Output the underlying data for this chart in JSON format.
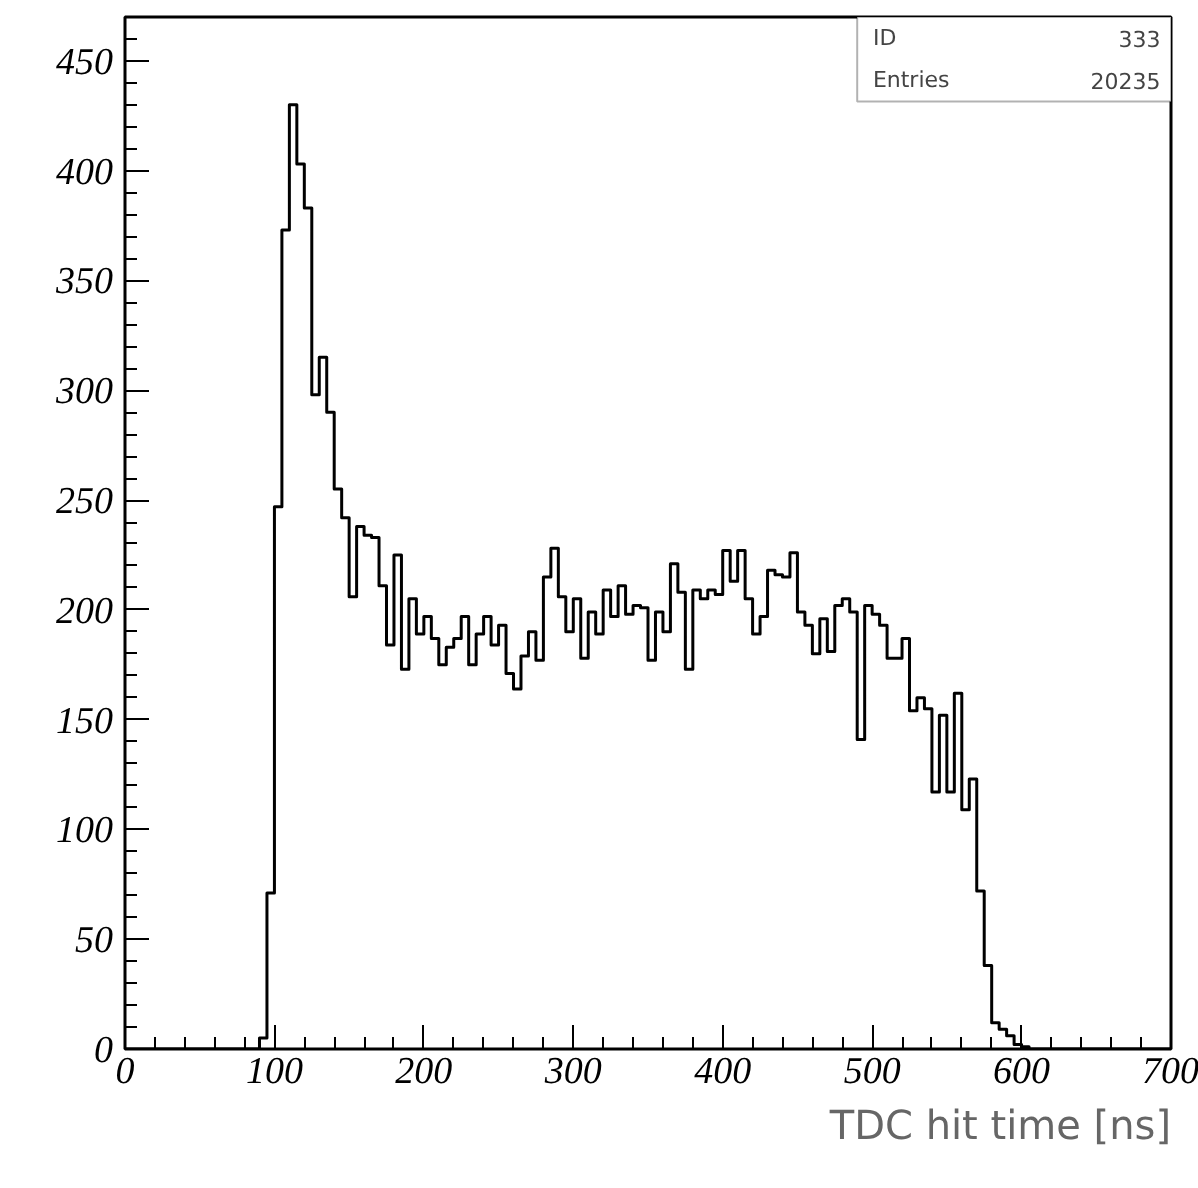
{
  "chart_data": {
    "type": "histogram",
    "xlabel": "TDC hit time [ns]",
    "bins": [
      0,
      5,
      10,
      15,
      20,
      25,
      30,
      35,
      40,
      45,
      50,
      55,
      60,
      65,
      70,
      75,
      80,
      85,
      90,
      95,
      100,
      105,
      110,
      115,
      120,
      125,
      130,
      135,
      140,
      145,
      150,
      155,
      160,
      165,
      170,
      175,
      180,
      185,
      190,
      195,
      200,
      205,
      210,
      215,
      220,
      225,
      230,
      235,
      240,
      245,
      250,
      255,
      260,
      265,
      270,
      275,
      280,
      285,
      290,
      295,
      300,
      305,
      310,
      315,
      320,
      325,
      330,
      335,
      340,
      345,
      350,
      355,
      360,
      365,
      370,
      375,
      380,
      385,
      390,
      395,
      400,
      405,
      410,
      415,
      420,
      425,
      430,
      435,
      440,
      445,
      450,
      455,
      460,
      465,
      470,
      475,
      480,
      485,
      490,
      495,
      500,
      505,
      510,
      515,
      520,
      525,
      530,
      535,
      540,
      545,
      550,
      555,
      560,
      565,
      570,
      575,
      580,
      585,
      590,
      595,
      600,
      605,
      610,
      615,
      620,
      625,
      630,
      635,
      640,
      645,
      650,
      655,
      660,
      665,
      670,
      675,
      680,
      685,
      690,
      695,
      700
    ],
    "values": [
      0,
      0,
      0,
      0,
      0,
      0,
      0,
      0,
      0,
      0,
      0,
      0,
      0,
      0,
      0,
      0,
      0,
      0,
      5,
      71,
      247,
      373,
      430,
      403,
      383,
      298,
      315,
      290,
      255,
      242,
      206,
      238,
      234,
      233,
      211,
      184,
      225,
      173,
      205,
      189,
      197,
      187,
      175,
      183,
      187,
      197,
      175,
      189,
      197,
      184,
      193,
      171,
      164,
      179,
      190,
      177,
      215,
      228,
      206,
      190,
      205,
      178,
      199,
      189,
      209,
      197,
      211,
      198,
      202,
      201,
      177,
      199,
      190,
      221,
      208,
      173,
      209,
      205,
      209,
      207,
      227,
      213,
      227,
      205,
      189,
      197,
      218,
      216,
      215,
      226,
      199,
      193,
      180,
      196,
      181,
      202,
      205,
      199,
      141,
      202,
      198,
      193,
      178,
      178,
      187,
      154,
      160,
      155,
      117,
      152,
      117,
      162,
      109,
      123,
      72,
      38,
      12,
      9,
      6,
      2,
      1,
      0,
      0,
      0,
      0,
      0,
      0,
      0,
      0,
      0,
      0,
      0,
      0,
      0,
      0,
      0,
      0,
      0,
      0,
      0
    ],
    "color": "#000000",
    "xlim": [
      0,
      700
    ],
    "xticks": [
      0,
      100,
      200,
      300,
      400,
      500,
      600,
      700
    ],
    "ylim": [
      0,
      470
    ],
    "yticks": [
      0,
      50,
      100,
      150,
      200,
      250,
      300,
      350,
      400,
      450
    ],
    "grid": false,
    "annotations": [
      "ID 333",
      "Entries 20235"
    ]
  }
}
